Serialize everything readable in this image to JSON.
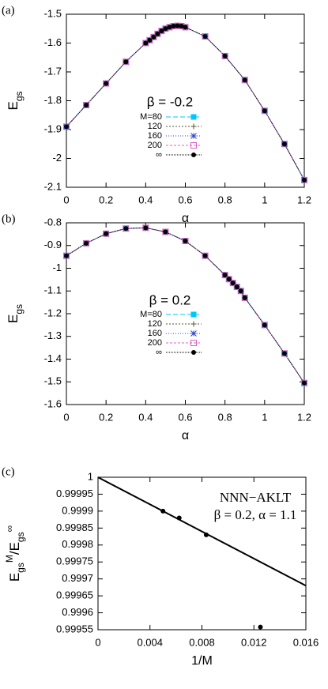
{
  "chart_data": [
    {
      "type": "line",
      "panel_label": "(a)",
      "xlabel": "α",
      "ylabel": [
        "E",
        "gs"
      ],
      "annotation": "β = -0.2",
      "x": [
        0,
        0.1,
        0.2,
        0.3,
        0.4,
        0.42,
        0.44,
        0.46,
        0.48,
        0.5,
        0.52,
        0.54,
        0.56,
        0.58,
        0.6,
        0.7,
        0.8,
        0.9,
        1,
        1.1,
        1.2
      ],
      "series": [
        {
          "name": "M=80",
          "color": "#00c8ff",
          "marker": "square-filled",
          "values": [
            -1.89,
            -1.815,
            -1.74,
            -1.665,
            -1.6,
            -1.59,
            -1.579,
            -1.568,
            -1.558,
            -1.55,
            -1.545,
            -1.541,
            -1.54,
            -1.541,
            -1.545,
            -1.577,
            -1.645,
            -1.728,
            -1.835,
            -1.95,
            -2.075
          ]
        },
        {
          "name": "120",
          "color": "#555533",
          "marker": "plus",
          "values": [
            -1.89,
            -1.815,
            -1.74,
            -1.665,
            -1.6,
            -1.59,
            -1.579,
            -1.568,
            -1.558,
            -1.55,
            -1.545,
            -1.541,
            -1.54,
            -1.541,
            -1.545,
            -1.577,
            -1.645,
            -1.728,
            -1.835,
            -1.95,
            -2.075
          ]
        },
        {
          "name": "160",
          "color": "#3344cc",
          "marker": "star",
          "values": [
            -1.89,
            -1.815,
            -1.74,
            -1.665,
            -1.6,
            -1.59,
            -1.579,
            -1.568,
            -1.558,
            -1.55,
            -1.545,
            -1.541,
            -1.54,
            -1.541,
            -1.545,
            -1.577,
            -1.645,
            -1.728,
            -1.835,
            -1.95,
            -2.075
          ]
        },
        {
          "name": "200",
          "color": "#e060c0",
          "marker": "square-open",
          "values": [
            -1.89,
            -1.815,
            -1.74,
            -1.665,
            -1.6,
            -1.59,
            -1.579,
            -1.568,
            -1.558,
            -1.55,
            -1.545,
            -1.541,
            -1.54,
            -1.541,
            -1.545,
            -1.577,
            -1.645,
            -1.728,
            -1.835,
            -1.95,
            -2.075
          ]
        },
        {
          "name": "∞",
          "color": "#000000",
          "marker": "circle",
          "values": [
            -1.89,
            -1.815,
            -1.74,
            -1.665,
            -1.6,
            -1.59,
            -1.579,
            -1.568,
            -1.558,
            -1.55,
            -1.545,
            -1.541,
            -1.54,
            -1.541,
            -1.545,
            -1.577,
            -1.645,
            -1.728,
            -1.835,
            -1.95,
            -2.075
          ]
        }
      ],
      "xlim": [
        0,
        1.2
      ],
      "xticks": [
        0,
        0.2,
        0.4,
        0.6,
        0.8,
        1,
        1.2
      ],
      "ylim": [
        -2.1,
        -1.5
      ],
      "yticks": [
        -2.1,
        -2,
        -1.9,
        -1.8,
        -1.7,
        -1.6,
        -1.5
      ]
    },
    {
      "type": "line",
      "panel_label": "(b)",
      "xlabel": "α",
      "ylabel": [
        "E",
        "gs"
      ],
      "annotation": "β = 0.2",
      "x": [
        0,
        0.1,
        0.2,
        0.3,
        0.4,
        0.5,
        0.6,
        0.7,
        0.8,
        0.82,
        0.84,
        0.86,
        0.88,
        0.9,
        1,
        1.1,
        1.2
      ],
      "series": [
        {
          "name": "M=80",
          "color": "#00c8ff",
          "marker": "square-filled",
          "values": [
            -0.945,
            -0.89,
            -0.848,
            -0.825,
            -0.822,
            -0.84,
            -0.88,
            -0.945,
            -1.03,
            -1.048,
            -1.065,
            -1.082,
            -1.1,
            -1.13,
            -1.25,
            -1.375,
            -1.505
          ]
        },
        {
          "name": "120",
          "color": "#555533",
          "marker": "plus",
          "values": [
            -0.945,
            -0.89,
            -0.848,
            -0.825,
            -0.822,
            -0.84,
            -0.88,
            -0.945,
            -1.03,
            -1.048,
            -1.065,
            -1.082,
            -1.1,
            -1.13,
            -1.25,
            -1.375,
            -1.505
          ]
        },
        {
          "name": "160",
          "color": "#3344cc",
          "marker": "star",
          "values": [
            -0.945,
            -0.89,
            -0.848,
            -0.825,
            -0.822,
            -0.84,
            -0.88,
            -0.945,
            -1.03,
            -1.048,
            -1.065,
            -1.082,
            -1.1,
            -1.13,
            -1.25,
            -1.375,
            -1.505
          ]
        },
        {
          "name": "200",
          "color": "#e060c0",
          "marker": "square-open",
          "values": [
            -0.945,
            -0.89,
            -0.848,
            -0.825,
            -0.822,
            -0.84,
            -0.88,
            -0.945,
            -1.03,
            -1.048,
            -1.065,
            -1.082,
            -1.1,
            -1.13,
            -1.25,
            -1.375,
            -1.505
          ]
        },
        {
          "name": "∞",
          "color": "#000000",
          "marker": "circle",
          "values": [
            -0.945,
            -0.89,
            -0.848,
            -0.825,
            -0.822,
            -0.84,
            -0.88,
            -0.945,
            -1.03,
            -1.048,
            -1.065,
            -1.082,
            -1.1,
            -1.13,
            -1.25,
            -1.375,
            -1.505
          ]
        }
      ],
      "xlim": [
        0,
        1.2
      ],
      "xticks": [
        0,
        0.2,
        0.4,
        0.6,
        0.8,
        1,
        1.2
      ],
      "ylim": [
        -1.6,
        -0.8
      ],
      "yticks": [
        -1.6,
        -1.5,
        -1.4,
        -1.3,
        -1.2,
        -1.1,
        -1,
        -0.9,
        -0.8
      ]
    },
    {
      "type": "scatter",
      "panel_label": "(c)",
      "xlabel": "1/M",
      "ylabel": [
        "E",
        "gs",
        "M",
        "/E",
        "gs",
        "∞"
      ],
      "annotations": [
        "NNN−AKLT",
        "β = 0.2, α = 1.1"
      ],
      "series": [
        {
          "color": "#000000",
          "marker": "circle",
          "x": [
            0.005,
            0.00625,
            0.00833,
            0.0125
          ],
          "values": [
            0.9999,
            0.99988,
            0.99983,
            0.999558
          ]
        },
        {
          "color": "#000000",
          "x": [
            0,
            0.016
          ],
          "values": [
            1,
            0.99968
          ]
        }
      ],
      "xlim": [
        0,
        0.016
      ],
      "xticks": [
        0,
        0.004,
        0.008,
        0.012,
        0.016
      ],
      "ylim": [
        0.99955,
        1
      ],
      "yticks": [
        0.99955,
        0.9996,
        0.99965,
        0.9997,
        0.99975,
        0.9998,
        0.99985,
        0.9999,
        0.99995,
        1
      ]
    }
  ]
}
